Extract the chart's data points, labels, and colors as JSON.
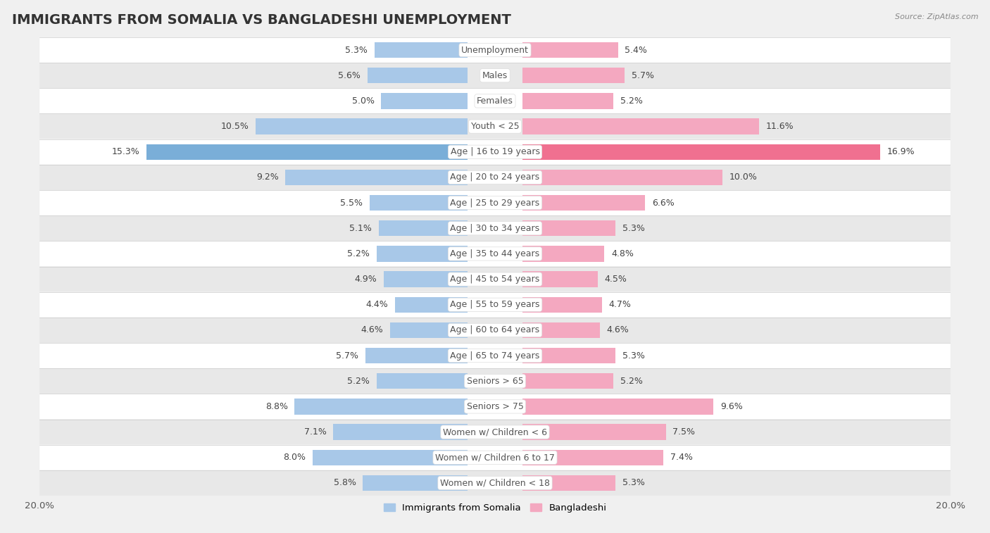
{
  "title": "IMMIGRANTS FROM SOMALIA VS BANGLADESHI UNEMPLOYMENT",
  "source": "Source: ZipAtlas.com",
  "categories": [
    "Unemployment",
    "Males",
    "Females",
    "Youth < 25",
    "Age | 16 to 19 years",
    "Age | 20 to 24 years",
    "Age | 25 to 29 years",
    "Age | 30 to 34 years",
    "Age | 35 to 44 years",
    "Age | 45 to 54 years",
    "Age | 55 to 59 years",
    "Age | 60 to 64 years",
    "Age | 65 to 74 years",
    "Seniors > 65",
    "Seniors > 75",
    "Women w/ Children < 6",
    "Women w/ Children 6 to 17",
    "Women w/ Children < 18"
  ],
  "somalia_values": [
    5.3,
    5.6,
    5.0,
    10.5,
    15.3,
    9.2,
    5.5,
    5.1,
    5.2,
    4.9,
    4.4,
    4.6,
    5.7,
    5.2,
    8.8,
    7.1,
    8.0,
    5.8
  ],
  "bangladeshi_values": [
    5.4,
    5.7,
    5.2,
    11.6,
    16.9,
    10.0,
    6.6,
    5.3,
    4.8,
    4.5,
    4.7,
    4.6,
    5.3,
    5.2,
    9.6,
    7.5,
    7.4,
    5.3
  ],
  "somalia_color": "#a8c8e8",
  "bangladeshi_color": "#f4a8c0",
  "somalia_highlight_color": "#7aaed8",
  "bangladeshi_highlight_color": "#f07090",
  "highlight_rows": [
    4
  ],
  "xlim": 20.0,
  "bg_color": "#f0f0f0",
  "row_bg_white": "#ffffff",
  "row_bg_gray": "#e8e8e8",
  "title_fontsize": 14,
  "label_fontsize": 9,
  "value_fontsize": 9
}
